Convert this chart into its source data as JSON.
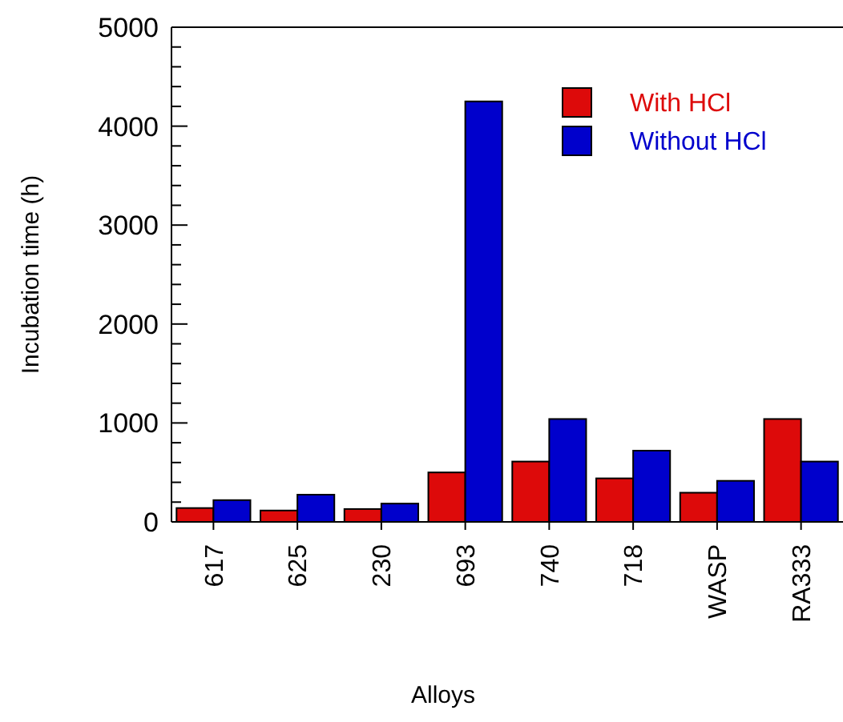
{
  "chart_data": {
    "type": "bar",
    "xlabel": "Alloys",
    "ylabel": "Incubation time (h)",
    "categories": [
      "617",
      "625",
      "230",
      "693",
      "740",
      "718",
      "WASP",
      "RA333"
    ],
    "series": [
      {
        "name": "With HCl",
        "color": "#dd0a0a",
        "values": [
          140,
          115,
          130,
          500,
          610,
          440,
          295,
          1040
        ]
      },
      {
        "name": "Without HCl",
        "color": "#0000cc",
        "values": [
          220,
          275,
          185,
          4250,
          1040,
          720,
          415,
          610
        ]
      }
    ],
    "ylim": [
      0,
      5000
    ],
    "yticks": [
      0,
      1000,
      2000,
      3000,
      4000,
      5000
    ],
    "grid": false,
    "legend": "top right"
  }
}
